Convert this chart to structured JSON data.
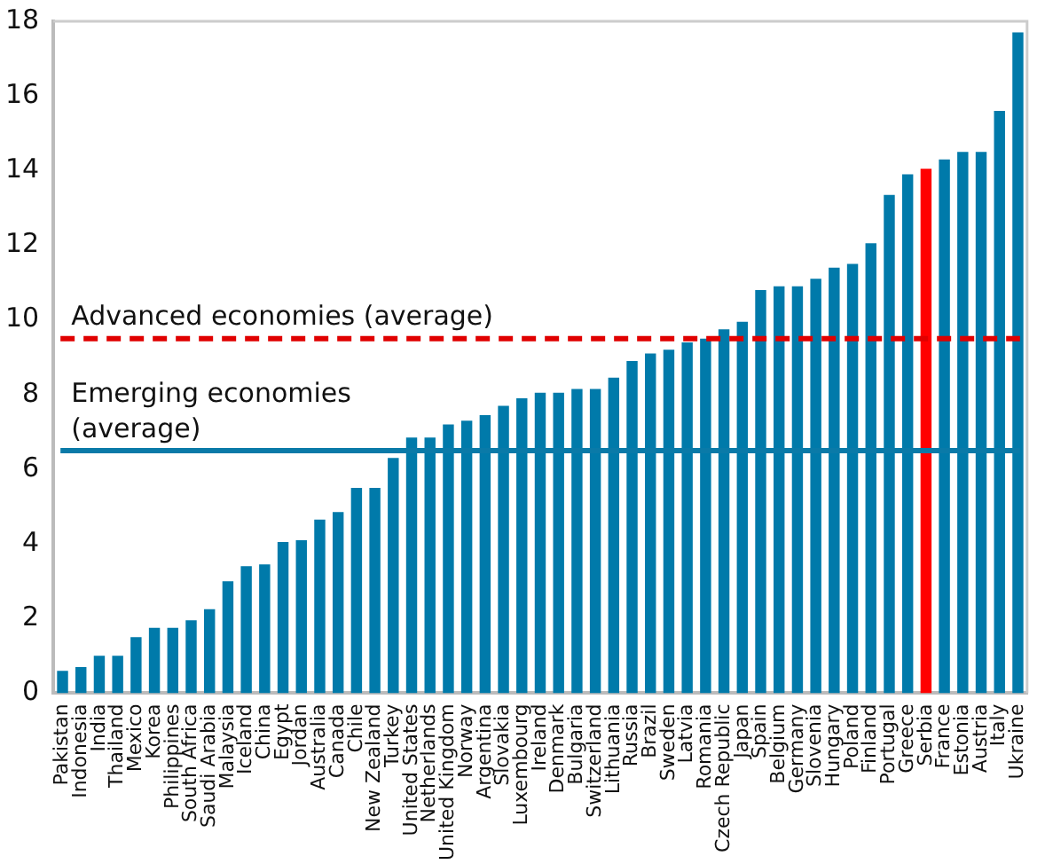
{
  "chart_data": {
    "type": "bar",
    "categories": [
      "Pakistan",
      "Indonesia",
      "India",
      "Thailand",
      "Mexico",
      "Korea",
      "Philippines",
      "South Africa",
      "Saudi Arabia",
      "Malaysia",
      "Iceland",
      "China",
      "Egypt",
      "Jordan",
      "Australia",
      "Canada",
      "Chile",
      "New Zealand",
      "Turkey",
      "United States",
      "Netherlands",
      "United Kingdom",
      "Norway",
      "Argentina",
      "Slovakia",
      "Luxembourg",
      "Ireland",
      "Denmark",
      "Bulgaria",
      "Switzerland",
      "Lithuania",
      "Russia",
      "Brazil",
      "Sweden",
      "Latvia",
      "Romania",
      "Czech Republic",
      "Japan",
      "Spain",
      "Belgium",
      "Germany",
      "Slovenia",
      "Hungary",
      "Poland",
      "Finland",
      "Portugal",
      "Greece",
      "Serbia",
      "France",
      "Estonia",
      "Austria",
      "Italy",
      "Ukraine"
    ],
    "values": [
      0.6,
      0.7,
      1.0,
      1.0,
      1.5,
      1.75,
      1.75,
      1.95,
      2.25,
      3.0,
      3.4,
      3.45,
      4.05,
      4.1,
      4.65,
      4.85,
      5.5,
      5.5,
      6.3,
      6.85,
      6.85,
      7.2,
      7.3,
      7.45,
      7.7,
      7.9,
      8.05,
      8.05,
      8.15,
      8.15,
      8.45,
      8.9,
      9.1,
      9.2,
      9.4,
      9.5,
      9.75,
      9.95,
      10.8,
      10.9,
      10.9,
      11.1,
      11.4,
      11.5,
      12.05,
      13.35,
      13.9,
      14.05,
      14.3,
      14.5,
      14.5,
      15.6,
      17.7
    ],
    "colors": [
      "#007aaa",
      "#007aaa",
      "#007aaa",
      "#007aaa",
      "#007aaa",
      "#007aaa",
      "#007aaa",
      "#007aaa",
      "#007aaa",
      "#007aaa",
      "#007aaa",
      "#007aaa",
      "#007aaa",
      "#007aaa",
      "#007aaa",
      "#007aaa",
      "#007aaa",
      "#007aaa",
      "#007aaa",
      "#007aaa",
      "#007aaa",
      "#007aaa",
      "#007aaa",
      "#007aaa",
      "#007aaa",
      "#007aaa",
      "#007aaa",
      "#007aaa",
      "#007aaa",
      "#007aaa",
      "#007aaa",
      "#007aaa",
      "#007aaa",
      "#007aaa",
      "#007aaa",
      "#007aaa",
      "#007aaa",
      "#007aaa",
      "#007aaa",
      "#007aaa",
      "#007aaa",
      "#007aaa",
      "#007aaa",
      "#007aaa",
      "#007aaa",
      "#007aaa",
      "#007aaa",
      "#ff0000",
      "#007aaa",
      "#007aaa",
      "#007aaa",
      "#007aaa",
      "#007aaa"
    ],
    "ylim": [
      0,
      18
    ],
    "yticks": [
      0,
      2,
      4,
      6,
      8,
      10,
      12,
      14,
      16,
      18
    ],
    "grid": false,
    "legend": false,
    "ref_lines": [
      {
        "axis": "y",
        "value": 9.5,
        "label": "Advanced economies (average)",
        "color": "#e00000",
        "line_style": "dashed"
      },
      {
        "axis": "y",
        "value": 6.5,
        "label": "Emerging economies\n(average)",
        "color": "#0a7aa8",
        "line_style": "solid"
      }
    ]
  }
}
